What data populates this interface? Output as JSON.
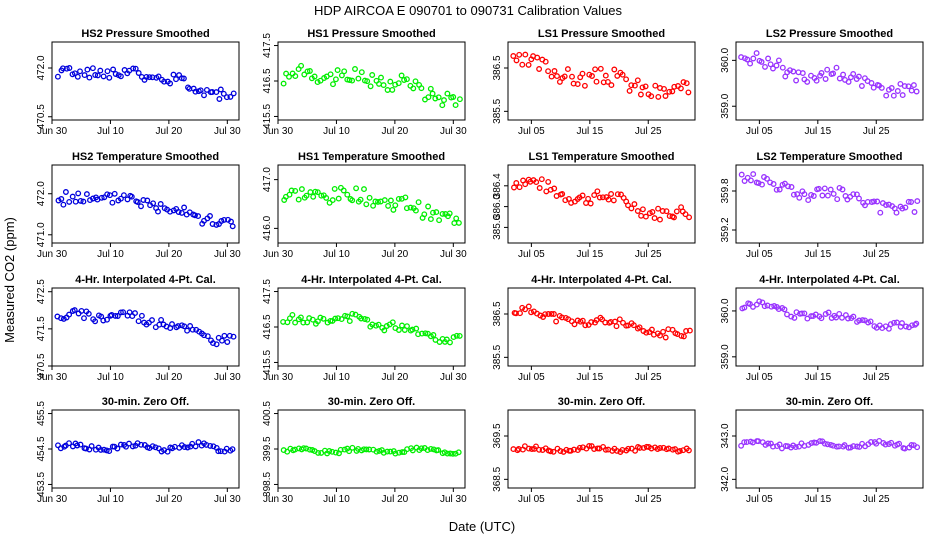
{
  "figure": {
    "title": "HDP    AIRCOA E    090701 to 090731    Calibration Values",
    "xlabel": "Date (UTC)",
    "ylabel": "Measured CO2 (ppm)"
  },
  "chart_data": [
    {
      "type": "scatter",
      "title": "HS2 Pressure Smoothed",
      "color": "#0000dd",
      "xlim": [
        30,
        62
      ],
      "xticks": [
        30,
        40,
        50,
        60
      ],
      "xtick_labels": [
        "Jun 30",
        "Jul 10",
        "Jul 20",
        "Jul 30"
      ],
      "ylim": [
        470.4,
        472.8
      ],
      "yticks": [
        470.5,
        472.0
      ],
      "ytick_labels": [
        "470.5",
        "472.0"
      ],
      "gen": {
        "kind": "hs",
        "ymid": 471.6,
        "amp": 0.5,
        "noise": 0.18,
        "seed": 1
      }
    },
    {
      "type": "scatter",
      "title": "HS1 Pressure Smoothed",
      "color": "#00ee00",
      "xlim": [
        30,
        62
      ],
      "xticks": [
        30,
        40,
        50,
        60
      ],
      "xtick_labels": [
        "Jun 30",
        "Jul 10",
        "Jul 20",
        "Jul 30"
      ],
      "ylim": [
        415.4,
        417.6
      ],
      "yticks": [
        415.5,
        416.5,
        417.5
      ],
      "ytick_labels": [
        "415.5",
        "416.5",
        "417.5"
      ],
      "gen": {
        "kind": "hs",
        "ymid": 416.4,
        "amp": 0.5,
        "noise": 0.22,
        "seed": 2
      }
    },
    {
      "type": "scatter",
      "title": "LS1 Pressure Smoothed",
      "color": "#ff0000",
      "xlim": [
        31,
        63
      ],
      "xticks": [
        35,
        45,
        55
      ],
      "xtick_labels": [
        "Jul 05",
        "Jul 15",
        "Jul 25"
      ],
      "ylim": [
        385.3,
        387.1
      ],
      "yticks": [
        385.5,
        386.5
      ],
      "ytick_labels": [
        "385.5",
        "386.5"
      ],
      "gen": {
        "kind": "ls",
        "ymid": 386.2,
        "amp": 0.45,
        "noise": 0.2,
        "seed": 3
      }
    },
    {
      "type": "scatter",
      "title": "LS2 Pressure Smoothed",
      "color": "#9933ff",
      "xlim": [
        31,
        63
      ],
      "xticks": [
        35,
        45,
        55
      ],
      "xtick_labels": [
        "Jul 05",
        "Jul 15",
        "Jul 25"
      ],
      "ylim": [
        358.7,
        360.4
      ],
      "yticks": [
        359.0,
        360.0
      ],
      "ytick_labels": [
        "359.0",
        "360.0"
      ],
      "gen": {
        "kind": "ls",
        "ymid": 359.6,
        "amp": 0.45,
        "noise": 0.15,
        "seed": 4
      }
    },
    {
      "type": "scatter",
      "title": "HS2 Temperature Smoothed",
      "color": "#0000dd",
      "xlim": [
        30,
        62
      ],
      "xticks": [
        30,
        40,
        50,
        60
      ],
      "xtick_labels": [
        "Jun 30",
        "Jul 10",
        "Jul 20",
        "Jul 30"
      ],
      "ylim": [
        470.8,
        472.7
      ],
      "yticks": [
        471.0,
        472.0
      ],
      "ytick_labels": [
        "471.0",
        "472.0"
      ],
      "gen": {
        "kind": "hs",
        "ymid": 471.65,
        "amp": 0.45,
        "noise": 0.15,
        "seed": 5
      }
    },
    {
      "type": "scatter",
      "title": "HS1 Temperature Smoothed",
      "color": "#00ee00",
      "xlim": [
        30,
        62
      ],
      "xticks": [
        30,
        40,
        50,
        60
      ],
      "xtick_labels": [
        "Jun 30",
        "Jul 10",
        "Jul 20",
        "Jul 30"
      ],
      "ylim": [
        415.7,
        417.3
      ],
      "yticks": [
        416.0,
        417.0
      ],
      "ytick_labels": [
        "416.0",
        "417.0"
      ],
      "gen": {
        "kind": "hs",
        "ymid": 416.5,
        "amp": 0.35,
        "noise": 0.15,
        "seed": 6
      }
    },
    {
      "type": "scatter",
      "title": "LS1 Temperature Smoothed",
      "color": "#ff0000",
      "xlim": [
        31,
        63
      ],
      "xticks": [
        35,
        45,
        55
      ],
      "xtick_labels": [
        "Jul 05",
        "Jul 15",
        "Jul 25"
      ],
      "ylim": [
        385.3,
        386.8
      ],
      "yticks": [
        385.6,
        386.0,
        386.4
      ],
      "ytick_labels": [
        "385.6",
        "386.0",
        "386.4"
      ],
      "gen": {
        "kind": "ls",
        "ymid": 386.1,
        "amp": 0.4,
        "noise": 0.12,
        "seed": 7
      }
    },
    {
      "type": "scatter",
      "title": "LS2 Temperature Smoothed",
      "color": "#9933ff",
      "xlim": [
        31,
        63
      ],
      "xticks": [
        35,
        45,
        55
      ],
      "xtick_labels": [
        "Jul 05",
        "Jul 15",
        "Jul 25"
      ],
      "ylim": [
        359.0,
        360.2
      ],
      "yticks": [
        359.2,
        359.8
      ],
      "ytick_labels": [
        "359.2",
        "359.8"
      ],
      "gen": {
        "kind": "ls",
        "ymid": 359.7,
        "amp": 0.3,
        "noise": 0.1,
        "seed": 8
      }
    },
    {
      "type": "scatter",
      "title": "4-Hr. Interpolated 4-Pt. Cal.",
      "color": "#0000dd",
      "xlim": [
        30,
        62
      ],
      "xticks": [
        30,
        40,
        50,
        60
      ],
      "xtick_labels": [
        "Jun 30",
        "Jul 10",
        "Jul 20",
        "Jul 30"
      ],
      "ylim": [
        470.5,
        472.6
      ],
      "yticks": [
        470.5,
        471.5,
        472.5
      ],
      "ytick_labels": [
        "470.5",
        "471.5",
        "472.5"
      ],
      "gen": {
        "kind": "hs",
        "ymid": 471.6,
        "amp": 0.5,
        "noise": 0.12,
        "seed": 9
      }
    },
    {
      "type": "scatter",
      "title": "4-Hr. Interpolated 4-Pt. Cal.",
      "color": "#00ee00",
      "xlim": [
        30,
        62
      ],
      "xticks": [
        30,
        40,
        50,
        60
      ],
      "xtick_labels": [
        "Jun 30",
        "Jul 10",
        "Jul 20",
        "Jul 30"
      ],
      "ylim": [
        415.4,
        417.6
      ],
      "yticks": [
        415.5,
        416.5,
        417.5
      ],
      "ytick_labels": [
        "415.5",
        "416.5",
        "417.5"
      ],
      "gen": {
        "kind": "hs",
        "ymid": 416.5,
        "amp": 0.4,
        "noise": 0.12,
        "seed": 10
      }
    },
    {
      "type": "scatter",
      "title": "4-Hr. Interpolated 4-Pt. Cal.",
      "color": "#ff0000",
      "xlim": [
        31,
        63
      ],
      "xticks": [
        35,
        45,
        55
      ],
      "xtick_labels": [
        "Jul 05",
        "Jul 15",
        "Jul 25"
      ],
      "ylim": [
        385.3,
        387.1
      ],
      "yticks": [
        385.5,
        386.5
      ],
      "ytick_labels": [
        "385.5",
        "386.5"
      ],
      "gen": {
        "kind": "ls",
        "ymid": 386.25,
        "amp": 0.35,
        "noise": 0.1,
        "seed": 11
      }
    },
    {
      "type": "scatter",
      "title": "4-Hr. Interpolated 4-Pt. Cal.",
      "color": "#9933ff",
      "xlim": [
        31,
        63
      ],
      "xticks": [
        35,
        45,
        55
      ],
      "xtick_labels": [
        "Jul 05",
        "Jul 15",
        "Jul 25"
      ],
      "ylim": [
        358.8,
        360.5
      ],
      "yticks": [
        359.0,
        360.0
      ],
      "ytick_labels": [
        "359.0",
        "360.0"
      ],
      "gen": {
        "kind": "ls",
        "ymid": 359.85,
        "amp": 0.3,
        "noise": 0.08,
        "seed": 12
      }
    },
    {
      "type": "scatter",
      "title": "30-min. Zero Off.",
      "color": "#0000dd",
      "xlim": [
        30,
        62
      ],
      "xticks": [
        30,
        40,
        50,
        60
      ],
      "xtick_labels": [
        "Jun 30",
        "Jul 10",
        "Jul 20",
        "Jul 30"
      ],
      "ylim": [
        453.4,
        455.6
      ],
      "yticks": [
        453.5,
        454.5,
        455.5
      ],
      "ytick_labels": [
        "453.5",
        "454.5",
        "455.5"
      ],
      "gen": {
        "kind": "flat",
        "ymid": 454.55,
        "amp": 0.08,
        "noise": 0.07,
        "seed": 13
      }
    },
    {
      "type": "scatter",
      "title": "30-min. Zero Off.",
      "color": "#00ee00",
      "xlim": [
        30,
        62
      ],
      "xticks": [
        30,
        40,
        50,
        60
      ],
      "xtick_labels": [
        "Jun 30",
        "Jul 10",
        "Jul 20",
        "Jul 30"
      ],
      "ylim": [
        398.4,
        400.6
      ],
      "yticks": [
        398.5,
        399.5,
        400.5
      ],
      "ytick_labels": [
        "398.5",
        "399.5",
        "400.5"
      ],
      "gen": {
        "kind": "flat",
        "ymid": 399.45,
        "amp": 0.05,
        "noise": 0.05,
        "seed": 14
      }
    },
    {
      "type": "scatter",
      "title": "30-min. Zero Off.",
      "color": "#ff0000",
      "xlim": [
        31,
        63
      ],
      "xticks": [
        35,
        45,
        55
      ],
      "xtick_labels": [
        "Jul 05",
        "Jul 15",
        "Jul 25"
      ],
      "ylim": [
        368.3,
        370.1
      ],
      "yticks": [
        368.5,
        369.5
      ],
      "ytick_labels": [
        "368.5",
        "369.5"
      ],
      "gen": {
        "kind": "flat",
        "ymid": 369.2,
        "amp": 0.03,
        "noise": 0.04,
        "seed": 15
      }
    },
    {
      "type": "scatter",
      "title": "30-min. Zero Off.",
      "color": "#9933ff",
      "xlim": [
        31,
        63
      ],
      "xticks": [
        35,
        45,
        55
      ],
      "xtick_labels": [
        "Jul 05",
        "Jul 15",
        "Jul 25"
      ],
      "ylim": [
        341.8,
        343.6
      ],
      "yticks": [
        342.0,
        343.0
      ],
      "ytick_labels": [
        "342.0",
        "343.0"
      ],
      "gen": {
        "kind": "flat",
        "ymid": 342.8,
        "amp": 0.05,
        "noise": 0.05,
        "seed": 16
      }
    }
  ]
}
